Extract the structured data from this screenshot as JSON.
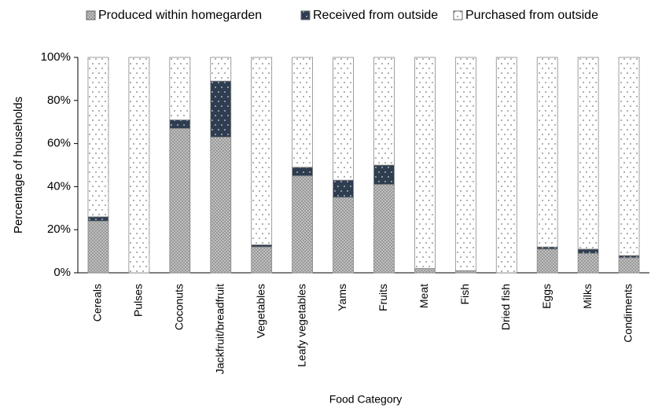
{
  "chart_data": {
    "type": "stacked_bar",
    "legend": "top",
    "y_label": "Percentage of households",
    "x_label": "Food Category",
    "categories": [
      "Cereals",
      "Pulses",
      "Coconuts",
      "Jackfruit/breadfruit",
      "Vegetables",
      "Leafy vegetables",
      "Yams",
      "Fruits",
      "Meat",
      "Fish",
      "Dried fish",
      "Eggs",
      "Milks",
      "Condiments"
    ],
    "series": [
      {
        "name": "Produced within homegarden",
        "color": "#c8c8c8",
        "values": [
          24,
          0,
          67,
          63,
          12,
          45,
          35,
          41,
          2,
          1,
          0,
          11,
          9,
          7
        ]
      },
      {
        "name": "Received from outside",
        "color": "#2e3d50",
        "values": [
          2,
          0,
          4,
          26,
          1,
          4,
          8,
          9,
          0,
          0,
          0,
          1,
          2,
          1
        ]
      },
      {
        "name": "Purchased from outside",
        "color": "#ffffff",
        "values": [
          74,
          100,
          29,
          11,
          87,
          51,
          57,
          50,
          98,
          99,
          100,
          88,
          89,
          92
        ]
      }
    ],
    "ylim": [
      0,
      100
    ],
    "yticks": [
      {
        "value": 0,
        "label": "0%"
      },
      {
        "value": 20,
        "label": "20%"
      },
      {
        "value": 40,
        "label": "40%"
      },
      {
        "value": 60,
        "label": "60%"
      },
      {
        "value": 80,
        "label": "80%"
      },
      {
        "value": 100,
        "label": "100%"
      }
    ]
  }
}
